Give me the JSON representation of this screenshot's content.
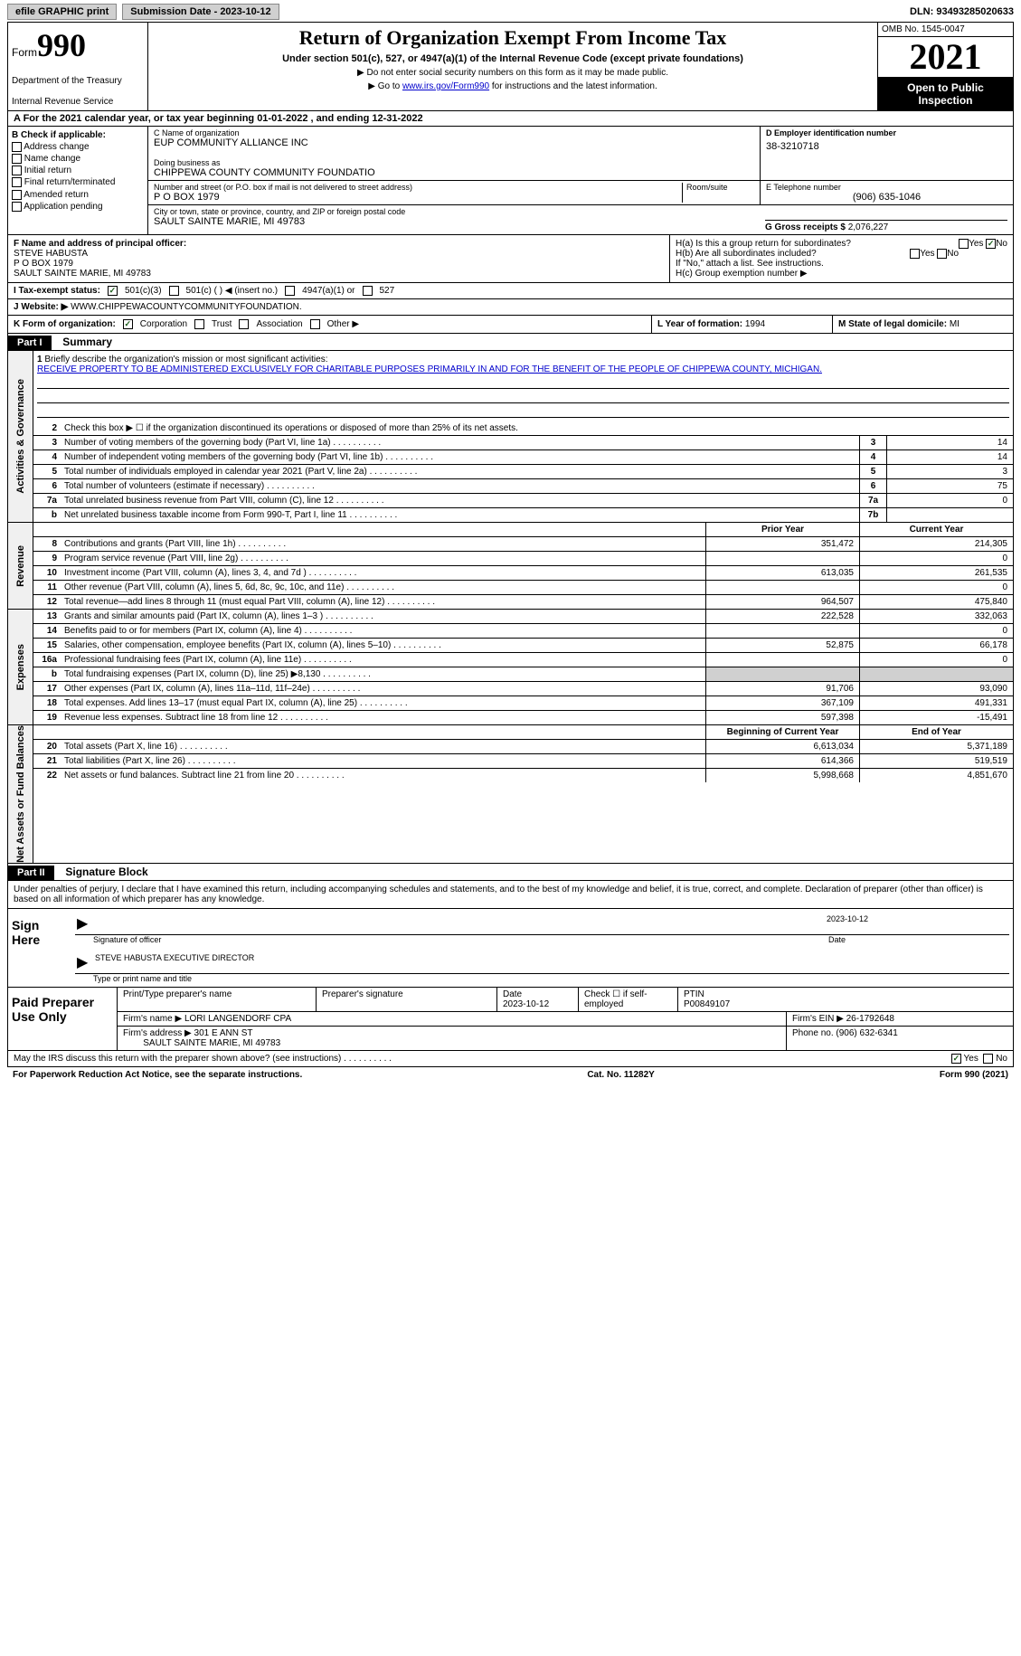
{
  "topbar": {
    "efile": "efile GRAPHIC print",
    "sub_label": "Submission Date - 2023-10-12",
    "dln": "DLN: 93493285020633"
  },
  "header": {
    "form_word": "Form",
    "form_num": "990",
    "dept": "Department of the Treasury",
    "irs": "Internal Revenue Service",
    "title": "Return of Organization Exempt From Income Tax",
    "subtitle": "Under section 501(c), 527, or 4947(a)(1) of the Internal Revenue Code (except private foundations)",
    "note1": "▶ Do not enter social security numbers on this form as it may be made public.",
    "note2_pre": "▶ Go to ",
    "note2_link": "www.irs.gov/Form990",
    "note2_post": " for instructions and the latest information.",
    "omb": "OMB No. 1545-0047",
    "year": "2021",
    "open_pub1": "Open to Public",
    "open_pub2": "Inspection"
  },
  "row_a": "A  For the 2021 calendar year, or tax year beginning 01-01-2022    , and ending 12-31-2022",
  "col_b": {
    "label": "B Check if applicable:",
    "items": [
      "Address change",
      "Name change",
      "Initial return",
      "Final return/terminated",
      "Amended return",
      "Application pending"
    ]
  },
  "col_c": {
    "name_lbl": "C Name of organization",
    "name": "EUP COMMUNITY ALLIANCE INC",
    "dba_lbl": "Doing business as",
    "dba": "CHIPPEWA COUNTY COMMUNITY FOUNDATIO",
    "addr_lbl": "Number and street (or P.O. box if mail is not delivered to street address)",
    "addr": "P O BOX 1979",
    "room_lbl": "Room/suite",
    "city_lbl": "City or town, state or province, country, and ZIP or foreign postal code",
    "city": "SAULT SAINTE MARIE, MI  49783"
  },
  "col_d": {
    "label": "D Employer identification number",
    "value": "38-3210718"
  },
  "col_e": {
    "label": "E Telephone number",
    "value": "(906) 635-1046"
  },
  "col_g": {
    "label": "G Gross receipts $",
    "value": "2,076,227"
  },
  "row_f": {
    "label": "F Name and address of principal officer:",
    "name": "STEVE HABUSTA",
    "addr1": "P O BOX 1979",
    "addr2": "SAULT SAINTE MARIE, MI  49783"
  },
  "row_h": {
    "ha": "H(a)  Is this a group return for subordinates?",
    "hb": "H(b)  Are all subordinates included?",
    "hb_note": "If \"No,\" attach a list. See instructions.",
    "hc": "H(c)  Group exemption number ▶",
    "yes": "Yes",
    "no": "No"
  },
  "row_i": {
    "label": "I   Tax-exempt status:",
    "opt1": "501(c)(3)",
    "opt2": "501(c) (  ) ◀ (insert no.)",
    "opt3": "4947(a)(1) or",
    "opt4": "527"
  },
  "row_j": {
    "label": "J   Website: ▶",
    "value": "WWW.CHIPPEWACOUNTYCOMMUNITYFOUNDATION."
  },
  "row_k": {
    "label": "K Form of organization:",
    "opts": [
      "Corporation",
      "Trust",
      "Association",
      "Other ▶"
    ]
  },
  "row_l": {
    "label": "L Year of formation:",
    "value": "1994"
  },
  "row_m": {
    "label": "M State of legal domicile:",
    "value": "MI"
  },
  "part1": {
    "header": "Part I",
    "title": "Summary"
  },
  "summary": {
    "tab1": "Activities & Governance",
    "tab2": "Revenue",
    "tab3": "Expenses",
    "tab4": "Net Assets or Fund Balances",
    "line1_lbl": "Briefly describe the organization's mission or most significant activities:",
    "line1_val": "RECEIVE PROPERTY TO BE ADMINISTERED EXCLUSIVELY FOR CHARITABLE PURPOSES PRIMARILY IN AND FOR THE BENEFIT OF THE PEOPLE OF CHIPPEWA COUNTY, MICHIGAN.",
    "line2": "Check this box ▶ ☐ if the organization discontinued its operations or disposed of more than 25% of its net assets.",
    "lines_ag": [
      {
        "n": "3",
        "d": "Number of voting members of the governing body (Part VI, line 1a)",
        "b": "3",
        "v": "14"
      },
      {
        "n": "4",
        "d": "Number of independent voting members of the governing body (Part VI, line 1b)",
        "b": "4",
        "v": "14"
      },
      {
        "n": "5",
        "d": "Total number of individuals employed in calendar year 2021 (Part V, line 2a)",
        "b": "5",
        "v": "3"
      },
      {
        "n": "6",
        "d": "Total number of volunteers (estimate if necessary)",
        "b": "6",
        "v": "75"
      },
      {
        "n": "7a",
        "d": "Total unrelated business revenue from Part VIII, column (C), line 12",
        "b": "7a",
        "v": "0"
      },
      {
        "n": "b",
        "d": "Net unrelated business taxable income from Form 990-T, Part I, line 11",
        "b": "7b",
        "v": ""
      }
    ],
    "col_prior": "Prior Year",
    "col_current": "Current Year",
    "lines_rev": [
      {
        "n": "8",
        "d": "Contributions and grants (Part VIII, line 1h)",
        "p": "351,472",
        "c": "214,305"
      },
      {
        "n": "9",
        "d": "Program service revenue (Part VIII, line 2g)",
        "p": "",
        "c": "0"
      },
      {
        "n": "10",
        "d": "Investment income (Part VIII, column (A), lines 3, 4, and 7d )",
        "p": "613,035",
        "c": "261,535"
      },
      {
        "n": "11",
        "d": "Other revenue (Part VIII, column (A), lines 5, 6d, 8c, 9c, 10c, and 11e)",
        "p": "",
        "c": "0"
      },
      {
        "n": "12",
        "d": "Total revenue—add lines 8 through 11 (must equal Part VIII, column (A), line 12)",
        "p": "964,507",
        "c": "475,840"
      }
    ],
    "lines_exp": [
      {
        "n": "13",
        "d": "Grants and similar amounts paid (Part IX, column (A), lines 1–3 )",
        "p": "222,528",
        "c": "332,063"
      },
      {
        "n": "14",
        "d": "Benefits paid to or for members (Part IX, column (A), line 4)",
        "p": "",
        "c": "0"
      },
      {
        "n": "15",
        "d": "Salaries, other compensation, employee benefits (Part IX, column (A), lines 5–10)",
        "p": "52,875",
        "c": "66,178"
      },
      {
        "n": "16a",
        "d": "Professional fundraising fees (Part IX, column (A), line 11e)",
        "p": "",
        "c": "0"
      },
      {
        "n": "b",
        "d": "Total fundraising expenses (Part IX, column (D), line 25) ▶8,130",
        "p": "gray",
        "c": "gray"
      },
      {
        "n": "17",
        "d": "Other expenses (Part IX, column (A), lines 11a–11d, 11f–24e)",
        "p": "91,706",
        "c": "93,090"
      },
      {
        "n": "18",
        "d": "Total expenses. Add lines 13–17 (must equal Part IX, column (A), line 25)",
        "p": "367,109",
        "c": "491,331"
      },
      {
        "n": "19",
        "d": "Revenue less expenses. Subtract line 18 from line 12",
        "p": "597,398",
        "c": "-15,491"
      }
    ],
    "col_begin": "Beginning of Current Year",
    "col_end": "End of Year",
    "lines_net": [
      {
        "n": "20",
        "d": "Total assets (Part X, line 16)",
        "p": "6,613,034",
        "c": "5,371,189"
      },
      {
        "n": "21",
        "d": "Total liabilities (Part X, line 26)",
        "p": "614,366",
        "c": "519,519"
      },
      {
        "n": "22",
        "d": "Net assets or fund balances. Subtract line 21 from line 20",
        "p": "5,998,668",
        "c": "4,851,670"
      }
    ]
  },
  "part2": {
    "header": "Part II",
    "title": "Signature Block"
  },
  "sig": {
    "declaration": "Under penalties of perjury, I declare that I have examined this return, including accompanying schedules and statements, and to the best of my knowledge and belief, it is true, correct, and complete. Declaration of preparer (other than officer) is based on all information of which preparer has any knowledge.",
    "sign_here": "Sign Here",
    "sig_officer": "Signature of officer",
    "sig_date": "2023-10-12",
    "date_lbl": "Date",
    "name_title": "STEVE HABUSTA  EXECUTIVE DIRECTOR",
    "name_title_lbl": "Type or print name and title"
  },
  "paid": {
    "label": "Paid Preparer Use Only",
    "print_name_lbl": "Print/Type preparer's name",
    "sig_lbl": "Preparer's signature",
    "date_lbl": "Date",
    "date": "2023-10-12",
    "check_lbl": "Check ☐ if self-employed",
    "ptin_lbl": "PTIN",
    "ptin": "P00849107",
    "firm_name_lbl": "Firm's name   ▶",
    "firm_name": "LORI LANGENDORF CPA",
    "firm_ein_lbl": "Firm's EIN ▶",
    "firm_ein": "26-1792648",
    "firm_addr_lbl": "Firm's address ▶",
    "firm_addr1": "301 E ANN ST",
    "firm_addr2": "SAULT SAINTE MARIE, MI  49783",
    "phone_lbl": "Phone no.",
    "phone": "(906) 632-6341"
  },
  "footer": {
    "discuss": "May the IRS discuss this return with the preparer shown above? (see instructions)",
    "yes": "Yes",
    "no": "No",
    "paperwork": "For Paperwork Reduction Act Notice, see the separate instructions.",
    "cat": "Cat. No. 11282Y",
    "form": "Form 990 (2021)"
  }
}
